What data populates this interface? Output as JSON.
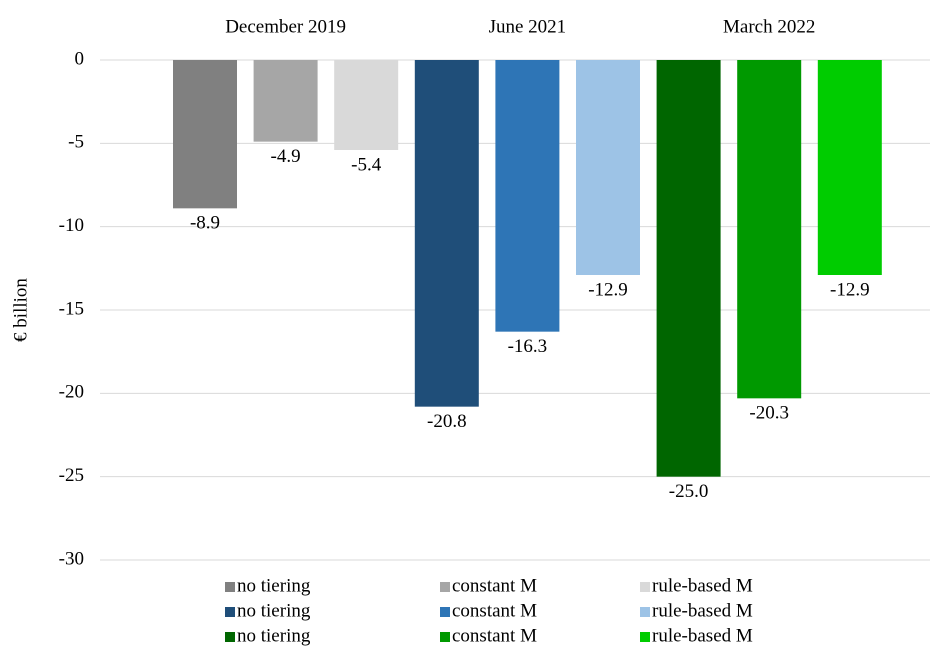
{
  "chart_data": {
    "type": "bar",
    "y_label": "€ billion",
    "categories": [
      "December 2019",
      "June 2021",
      "March 2022"
    ],
    "ylim": [
      -30,
      0
    ],
    "yticks": [
      0,
      -5,
      -10,
      -15,
      -20,
      -25,
      -30
    ],
    "grid": true,
    "series": [
      {
        "name": "no tiering",
        "color": "#808080",
        "values": [
          -8.9,
          null,
          null
        ]
      },
      {
        "name": "constant M",
        "color": "#a6a6a6",
        "values": [
          -4.9,
          null,
          null
        ]
      },
      {
        "name": "rule-based M",
        "color": "#d9d9d9",
        "values": [
          -5.4,
          null,
          null
        ]
      },
      {
        "name": "no tiering",
        "color": "#1f4e79",
        "values": [
          null,
          -20.8,
          null
        ]
      },
      {
        "name": "constant M",
        "color": "#2e75b6",
        "values": [
          null,
          -16.3,
          null
        ]
      },
      {
        "name": "rule-based M",
        "color": "#9dc3e6",
        "values": [
          null,
          -12.9,
          null
        ]
      },
      {
        "name": "no tiering",
        "color": "#006600",
        "values": [
          null,
          null,
          -25
        ],
        "value_labels": [
          null,
          null,
          "-25.0"
        ]
      },
      {
        "name": "constant M",
        "color": "#009900",
        "values": [
          null,
          null,
          -20.3
        ]
      },
      {
        "name": "rule-based M",
        "color": "#00cc00",
        "values": [
          null,
          null,
          -12.9
        ]
      }
    ]
  }
}
